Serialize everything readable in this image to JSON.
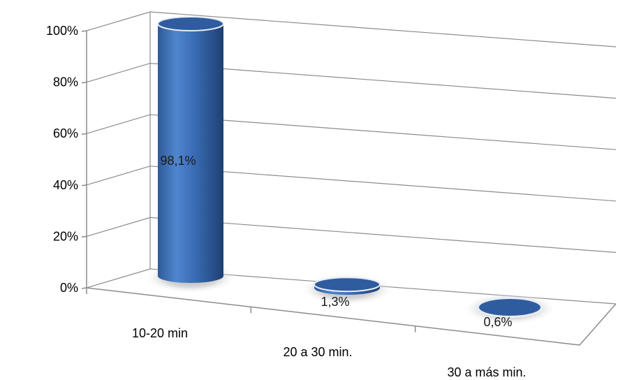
{
  "chart_data": {
    "type": "bar",
    "style": "3d-cylinder",
    "categories": [
      "10-20 min",
      "20 a 30 min.",
      "30 a más min."
    ],
    "values": [
      98.1,
      1.3,
      0.6
    ],
    "data_labels": [
      "98,1%",
      "1,3%",
      "0,6%"
    ],
    "y_ticks": [
      "0%",
      "20%",
      "40%",
      "60%",
      "80%",
      "100%"
    ],
    "ylim": [
      0,
      100
    ],
    "grid": true,
    "legend": "none",
    "bar_color": "#3a6db5"
  }
}
